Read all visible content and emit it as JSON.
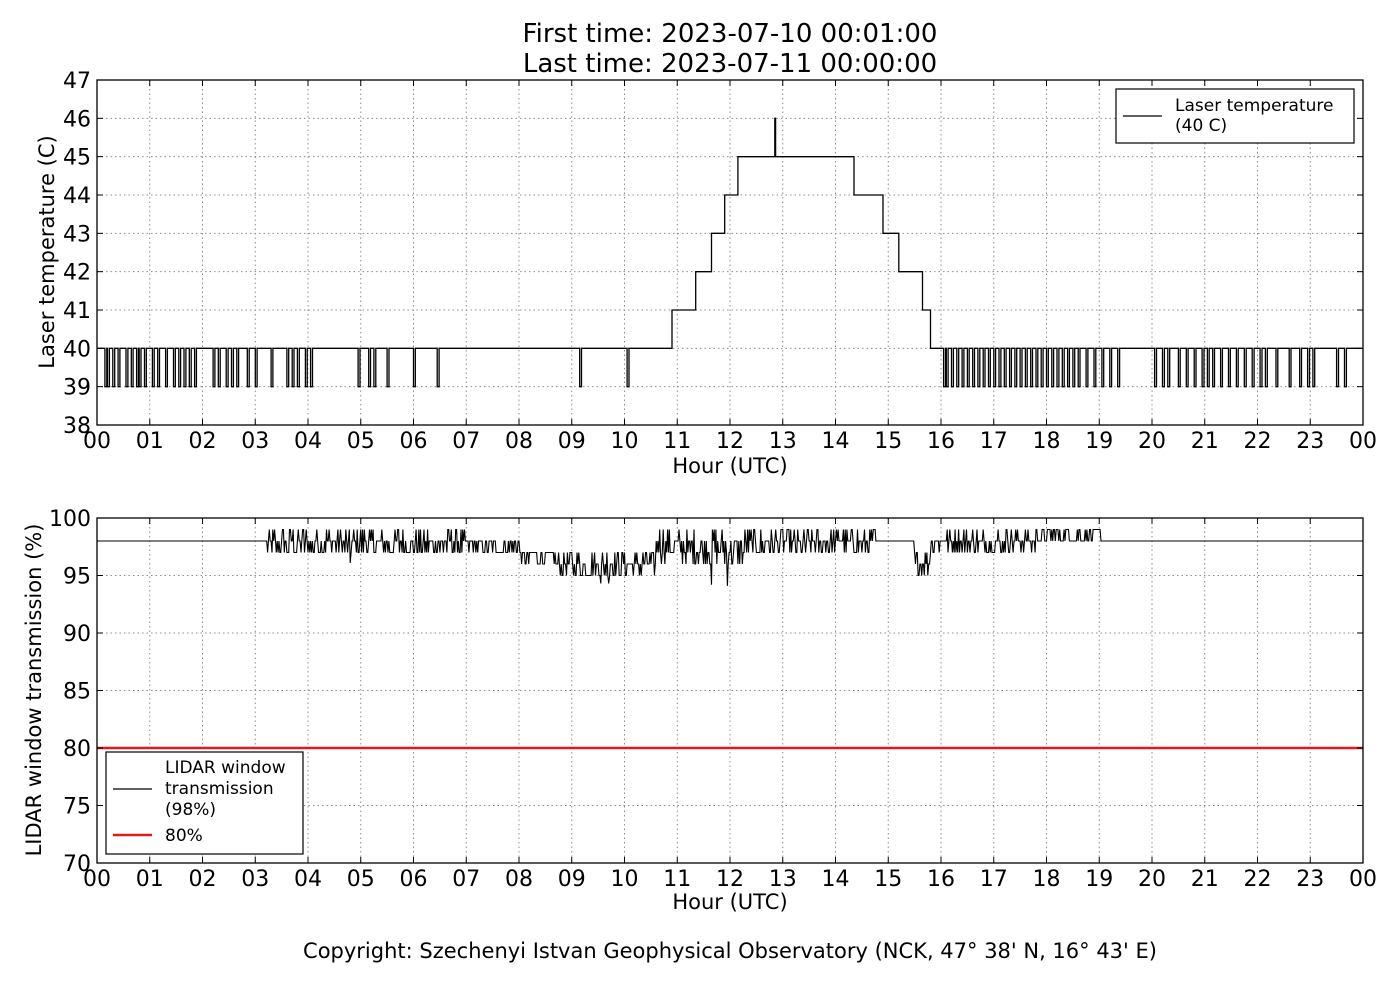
{
  "title": {
    "line1": "First time: 2023-07-10 00:01:00",
    "line2": "Last time: 2023-07-11 00:00:00"
  },
  "copyright": "Copyright: Szechenyi Istvan Geophysical Observatory (NCK, 47° 38' N, 16° 43' E)",
  "colors": {
    "line": "#000000",
    "threshold": "#e31a1c",
    "grid": "#8c8c8c"
  },
  "chart_data": [
    {
      "type": "line",
      "xlabel": "Hour (UTC)",
      "ylabel": "Laser temperature (C)",
      "xlim": [
        0,
        24
      ],
      "ylim": [
        38,
        47
      ],
      "x_ticks": [
        "00",
        "01",
        "02",
        "03",
        "04",
        "05",
        "06",
        "07",
        "08",
        "09",
        "10",
        "11",
        "12",
        "13",
        "14",
        "15",
        "16",
        "17",
        "18",
        "19",
        "20",
        "21",
        "22",
        "23",
        "00"
      ],
      "y_ticks": [
        "38",
        "39",
        "40",
        "41",
        "42",
        "43",
        "44",
        "45",
        "46",
        "47"
      ],
      "grid": true,
      "legend": {
        "position": "top-right",
        "entries": [
          {
            "label_line1": "Laser temperature",
            "label_line2": "(40 C)"
          }
        ]
      },
      "series": [
        {
          "name": "Laser temperature (40 C)",
          "baseline_steps": [
            [
              0,
              40
            ],
            [
              10.9,
              41
            ],
            [
              11.35,
              42
            ],
            [
              11.65,
              43
            ],
            [
              11.9,
              44
            ],
            [
              12.15,
              45
            ],
            [
              14.35,
              44
            ],
            [
              14.9,
              43
            ],
            [
              15.2,
              42
            ],
            [
              15.65,
              41
            ],
            [
              15.8,
              40
            ],
            [
              24,
              40
            ]
          ],
          "dips_to_39_hours": [
            0.15,
            0.2,
            0.3,
            0.4,
            0.55,
            0.65,
            0.75,
            0.8,
            0.9,
            1.05,
            1.15,
            1.3,
            1.45,
            1.55,
            1.65,
            1.75,
            1.85,
            2.2,
            2.3,
            2.45,
            2.55,
            2.65,
            2.85,
            3.0,
            3.3,
            3.6,
            3.7,
            3.8,
            3.95,
            4.05,
            4.95,
            5.15,
            5.25,
            5.5,
            6.0,
            6.45,
            9.15,
            10.05,
            16.05,
            16.1,
            16.2,
            16.3,
            16.4,
            16.5,
            16.6,
            16.7,
            16.8,
            16.9,
            17.0,
            17.1,
            17.2,
            17.3,
            17.4,
            17.5,
            17.6,
            17.7,
            17.8,
            17.9,
            18.0,
            18.1,
            18.2,
            18.3,
            18.4,
            18.5,
            18.6,
            18.75,
            18.9,
            19.05,
            19.2,
            19.35,
            20.05,
            20.2,
            20.3,
            20.5,
            20.65,
            20.8,
            20.95,
            21.05,
            21.15,
            21.3,
            21.45,
            21.6,
            21.75,
            21.9,
            22.05,
            22.15,
            22.35,
            22.6,
            22.8,
            22.95,
            23.05,
            23.5,
            23.65
          ],
          "spikes": [
            [
              12.85,
              46
            ]
          ]
        }
      ]
    },
    {
      "type": "line",
      "xlabel": "Hour (UTC)",
      "ylabel": "LIDAR window transmission (%)",
      "xlim": [
        0,
        24
      ],
      "ylim": [
        70,
        100
      ],
      "x_ticks": [
        "00",
        "01",
        "02",
        "03",
        "04",
        "05",
        "06",
        "07",
        "08",
        "09",
        "10",
        "11",
        "12",
        "13",
        "14",
        "15",
        "16",
        "17",
        "18",
        "19",
        "20",
        "21",
        "22",
        "23",
        "00"
      ],
      "y_ticks": [
        "70",
        "75",
        "80",
        "85",
        "90",
        "95",
        "100"
      ],
      "grid": true,
      "legend": {
        "position": "bottom-left",
        "entries": [
          {
            "label_line1": "LIDAR window",
            "label_line2": "transmission",
            "label_line3": "(98%)"
          },
          {
            "label_line1": "80%"
          }
        ]
      },
      "series": [
        {
          "name": "LIDAR window transmission (98%)",
          "baseline": 98,
          "noisy_segments": [
            [
              3.2,
              4.0,
              96.5,
              99
            ],
            [
              4.0,
              7.0,
              96.5,
              99
            ],
            [
              7.0,
              8.0,
              96.5,
              98.5
            ],
            [
              8.0,
              8.7,
              95.8,
              97.5
            ],
            [
              8.7,
              10.6,
              94.8,
              97
            ],
            [
              10.6,
              11.2,
              96.2,
              99
            ],
            [
              11.2,
              12.3,
              95.5,
              99
            ],
            [
              12.3,
              14.0,
              96.5,
              99
            ],
            [
              14.0,
              14.8,
              96.8,
              99
            ],
            [
              15.5,
              15.8,
              95.3,
              97
            ],
            [
              15.8,
              17.8,
              97,
              99
            ],
            [
              17.8,
              19.05,
              97.9,
              99
            ]
          ],
          "spikes": [
            [
              9.55,
              94.3
            ],
            [
              9.7,
              94.3
            ],
            [
              11.65,
              94.2
            ],
            [
              11.95,
              94.1
            ],
            [
              4.8,
              96.1
            ],
            [
              19.02,
              99
            ]
          ]
        },
        {
          "name": "80%",
          "y": 80
        }
      ]
    }
  ]
}
